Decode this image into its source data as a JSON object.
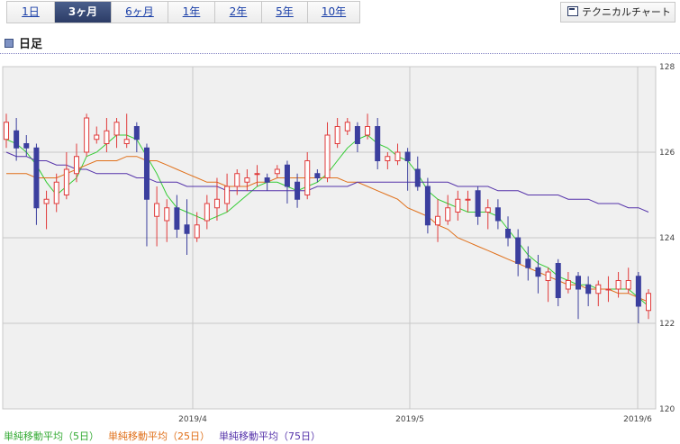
{
  "tabs": [
    {
      "label": "1日",
      "active": false
    },
    {
      "label": "3ヶ月",
      "active": true
    },
    {
      "label": "6ヶ月",
      "active": false
    },
    {
      "label": "1年",
      "active": false
    },
    {
      "label": "2年",
      "active": false
    },
    {
      "label": "5年",
      "active": false
    },
    {
      "label": "10年",
      "active": false
    }
  ],
  "tech_button_label": "テクニカルチャート",
  "chart_title": "日足",
  "colors": {
    "up": "#e03b3b",
    "down": "#3b3f9e",
    "ma5": "#33cc33",
    "ma25": "#e0701a",
    "ma75": "#5533aa",
    "grid": "#c8c8c8",
    "plot_bg": "#f0f0f0"
  },
  "chart_data": {
    "type": "candlestick",
    "xlabel": "",
    "ylabel": "",
    "ylim": [
      120,
      128
    ],
    "yticks": [
      120,
      122,
      124,
      126,
      128
    ],
    "xtick_labels": [
      "2019/4",
      "2019/5",
      "2019/6"
    ],
    "grid": true,
    "legend_position": "bottom-left",
    "candles": [
      [
        126.3,
        126.7,
        126.9,
        126.1
      ],
      [
        126.5,
        126.1,
        126.8,
        125.8
      ],
      [
        126.2,
        126.1,
        126.4,
        125.9
      ],
      [
        126.1,
        124.7,
        126.2,
        124.3
      ],
      [
        124.8,
        124.9,
        125.1,
        124.2
      ],
      [
        124.8,
        125.3,
        125.5,
        124.6
      ],
      [
        125.0,
        125.6,
        126.0,
        124.9
      ],
      [
        125.5,
        125.9,
        126.2,
        125.3
      ],
      [
        126.0,
        126.8,
        126.9,
        125.9
      ],
      [
        126.3,
        126.4,
        126.6,
        126.2
      ],
      [
        126.2,
        126.5,
        126.8,
        126.0
      ],
      [
        126.4,
        126.7,
        126.8,
        126.1
      ],
      [
        126.2,
        126.3,
        126.9,
        126.1
      ],
      [
        126.6,
        126.3,
        126.7,
        126.0
      ],
      [
        126.1,
        124.9,
        126.2,
        123.8
      ],
      [
        124.5,
        124.8,
        125.2,
        123.8
      ],
      [
        124.4,
        124.7,
        124.9,
        123.9
      ],
      [
        124.7,
        124.2,
        125.0,
        124.0
      ],
      [
        124.3,
        124.1,
        124.9,
        123.6
      ],
      [
        124.0,
        124.3,
        124.6,
        123.9
      ],
      [
        124.4,
        124.8,
        125.0,
        124.2
      ],
      [
        124.7,
        124.9,
        125.4,
        124.4
      ],
      [
        124.8,
        125.2,
        125.5,
        124.6
      ],
      [
        125.2,
        125.5,
        125.6,
        125.0
      ],
      [
        125.3,
        125.4,
        125.6,
        125.1
      ],
      [
        125.5,
        125.5,
        125.7,
        125.2
      ],
      [
        125.4,
        125.3,
        125.5,
        125.1
      ],
      [
        125.5,
        125.6,
        125.7,
        125.4
      ],
      [
        125.7,
        125.2,
        125.8,
        124.8
      ],
      [
        125.3,
        124.9,
        125.5,
        124.7
      ],
      [
        125.0,
        125.8,
        126.0,
        124.9
      ],
      [
        125.5,
        125.4,
        125.6,
        125.3
      ],
      [
        125.4,
        126.4,
        126.7,
        125.3
      ],
      [
        126.2,
        126.6,
        126.8,
        126.1
      ],
      [
        126.5,
        126.7,
        126.8,
        126.4
      ],
      [
        126.6,
        126.2,
        126.7,
        126.0
      ],
      [
        126.4,
        126.6,
        126.9,
        126.3
      ],
      [
        126.6,
        125.8,
        126.8,
        125.6
      ],
      [
        125.8,
        125.9,
        126.0,
        125.6
      ],
      [
        125.8,
        126.0,
        126.2,
        125.7
      ],
      [
        126.0,
        125.8,
        126.1,
        125.1
      ],
      [
        125.6,
        125.2,
        125.9,
        125.1
      ],
      [
        125.2,
        124.3,
        125.4,
        124.1
      ],
      [
        124.3,
        124.5,
        124.9,
        123.9
      ],
      [
        124.4,
        124.7,
        125.0,
        124.3
      ],
      [
        124.6,
        124.9,
        125.1,
        124.4
      ],
      [
        124.9,
        124.9,
        125.1,
        124.6
      ],
      [
        125.1,
        124.5,
        125.2,
        124.3
      ],
      [
        124.6,
        124.7,
        124.9,
        124.2
      ],
      [
        124.7,
        124.4,
        124.9,
        124.2
      ],
      [
        124.2,
        124.0,
        124.5,
        123.8
      ],
      [
        124.0,
        123.4,
        124.2,
        123.1
      ],
      [
        123.5,
        123.3,
        123.8,
        123.0
      ],
      [
        123.3,
        123.1,
        123.6,
        122.7
      ],
      [
        123.0,
        123.2,
        123.3,
        122.5
      ],
      [
        123.4,
        122.6,
        123.5,
        122.4
      ],
      [
        122.8,
        123.0,
        123.2,
        122.7
      ],
      [
        123.1,
        122.8,
        123.2,
        122.1
      ],
      [
        122.9,
        122.7,
        123.1,
        122.4
      ],
      [
        122.7,
        122.9,
        123.0,
        122.4
      ],
      [
        122.8,
        122.8,
        123.1,
        122.5
      ],
      [
        122.8,
        123.0,
        123.2,
        122.6
      ],
      [
        122.8,
        123.0,
        123.3,
        122.7
      ],
      [
        123.1,
        122.4,
        123.2,
        122.0
      ],
      [
        122.3,
        122.7,
        122.8,
        122.1
      ]
    ],
    "series": [
      {
        "name": "単純移動平均（5日）",
        "values": [
          126.3,
          126.2,
          126.0,
          125.7,
          125.3,
          125.0,
          125.2,
          125.4,
          125.9,
          126.0,
          126.2,
          126.4,
          126.4,
          126.3,
          125.9,
          125.5,
          125.0,
          124.7,
          124.6,
          124.5,
          124.4,
          124.5,
          124.6,
          124.8,
          125.0,
          125.2,
          125.3,
          125.3,
          125.2,
          125.1,
          125.2,
          125.3,
          125.5,
          125.8,
          126.1,
          126.3,
          126.4,
          126.2,
          126.1,
          125.9,
          125.8,
          125.5,
          125.1,
          124.9,
          124.8,
          124.7,
          124.6,
          124.6,
          124.6,
          124.5,
          124.2,
          123.9,
          123.6,
          123.4,
          123.3,
          123.1,
          123.0,
          122.9,
          122.9,
          122.8,
          122.8,
          122.8,
          122.8,
          122.6,
          122.4
        ]
      },
      {
        "name": "単純移動平均（25日）",
        "values": [
          125.5,
          125.5,
          125.5,
          125.4,
          125.4,
          125.4,
          125.5,
          125.6,
          125.7,
          125.8,
          125.8,
          125.8,
          125.9,
          125.9,
          125.8,
          125.8,
          125.7,
          125.6,
          125.5,
          125.4,
          125.3,
          125.3,
          125.2,
          125.2,
          125.2,
          125.3,
          125.3,
          125.4,
          125.4,
          125.4,
          125.4,
          125.4,
          125.4,
          125.4,
          125.3,
          125.3,
          125.2,
          125.1,
          125.0,
          124.9,
          124.7,
          124.6,
          124.5,
          124.3,
          124.2,
          124.0,
          123.9,
          123.8,
          123.7,
          123.6,
          123.5,
          123.4,
          123.3,
          123.2,
          123.1,
          123.0,
          122.9,
          122.9,
          122.8,
          122.8,
          122.8,
          122.7,
          122.7,
          122.6,
          122.5
        ]
      },
      {
        "name": "単純移動平均（75日）",
        "values": [
          126.0,
          125.9,
          125.9,
          125.8,
          125.8,
          125.7,
          125.7,
          125.6,
          125.6,
          125.5,
          125.5,
          125.5,
          125.5,
          125.4,
          125.4,
          125.3,
          125.3,
          125.3,
          125.2,
          125.2,
          125.2,
          125.2,
          125.1,
          125.1,
          125.1,
          125.1,
          125.1,
          125.1,
          125.1,
          125.1,
          125.1,
          125.2,
          125.2,
          125.2,
          125.2,
          125.3,
          125.3,
          125.3,
          125.3,
          125.3,
          125.3,
          125.3,
          125.3,
          125.3,
          125.3,
          125.2,
          125.2,
          125.2,
          125.2,
          125.1,
          125.1,
          125.1,
          125.0,
          125.0,
          125.0,
          125.0,
          124.9,
          124.9,
          124.9,
          124.8,
          124.8,
          124.8,
          124.7,
          124.7,
          124.6
        ]
      }
    ]
  }
}
